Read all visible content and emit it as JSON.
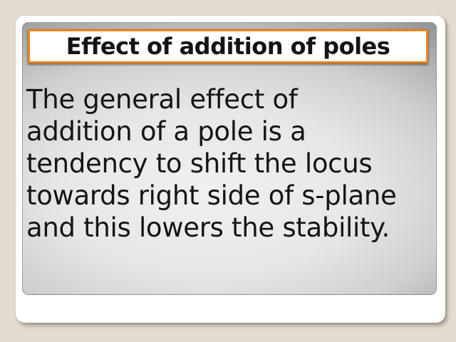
{
  "slide": {
    "title": "Effect of addition of poles",
    "body_lines": [
      "The general effect of",
      "addition of a pole is a",
      "tendency to shift the locus",
      "towards right side of s-plane",
      "and this lowers the stability."
    ]
  },
  "colors": {
    "page_background": "#e3dccf",
    "card_background": "#ffffff",
    "title_box_background": "#ffffff",
    "title_border": "#e8831f",
    "panel_center": "#f0f0f0",
    "panel_edge": "#979797",
    "text": "#141414"
  }
}
